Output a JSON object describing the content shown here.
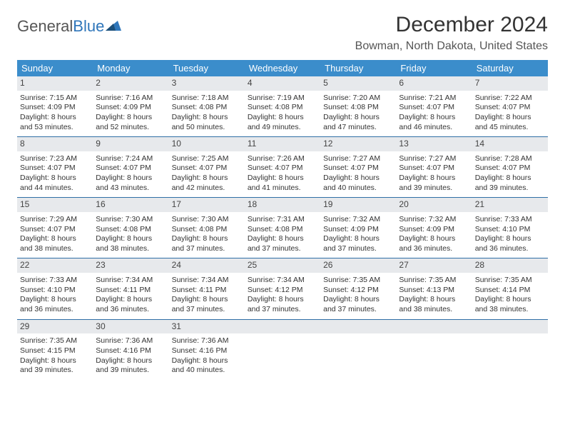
{
  "logo": {
    "general": "General",
    "blue": "Blue"
  },
  "title": "December 2024",
  "location": "Bowman, North Dakota, United States",
  "colors": {
    "header_bg": "#3b8dcb",
    "header_text": "#ffffff",
    "daynum_bg": "#e7e9ec",
    "rule": "#2f6fa6",
    "logo_blue": "#2f76ba"
  },
  "day_headers": [
    "Sunday",
    "Monday",
    "Tuesday",
    "Wednesday",
    "Thursday",
    "Friday",
    "Saturday"
  ],
  "weeks": [
    [
      {
        "day": "1",
        "sunrise": "Sunrise: 7:15 AM",
        "sunset": "Sunset: 4:09 PM",
        "d1": "Daylight: 8 hours",
        "d2": "and 53 minutes."
      },
      {
        "day": "2",
        "sunrise": "Sunrise: 7:16 AM",
        "sunset": "Sunset: 4:09 PM",
        "d1": "Daylight: 8 hours",
        "d2": "and 52 minutes."
      },
      {
        "day": "3",
        "sunrise": "Sunrise: 7:18 AM",
        "sunset": "Sunset: 4:08 PM",
        "d1": "Daylight: 8 hours",
        "d2": "and 50 minutes."
      },
      {
        "day": "4",
        "sunrise": "Sunrise: 7:19 AM",
        "sunset": "Sunset: 4:08 PM",
        "d1": "Daylight: 8 hours",
        "d2": "and 49 minutes."
      },
      {
        "day": "5",
        "sunrise": "Sunrise: 7:20 AM",
        "sunset": "Sunset: 4:08 PM",
        "d1": "Daylight: 8 hours",
        "d2": "and 47 minutes."
      },
      {
        "day": "6",
        "sunrise": "Sunrise: 7:21 AM",
        "sunset": "Sunset: 4:07 PM",
        "d1": "Daylight: 8 hours",
        "d2": "and 46 minutes."
      },
      {
        "day": "7",
        "sunrise": "Sunrise: 7:22 AM",
        "sunset": "Sunset: 4:07 PM",
        "d1": "Daylight: 8 hours",
        "d2": "and 45 minutes."
      }
    ],
    [
      {
        "day": "8",
        "sunrise": "Sunrise: 7:23 AM",
        "sunset": "Sunset: 4:07 PM",
        "d1": "Daylight: 8 hours",
        "d2": "and 44 minutes."
      },
      {
        "day": "9",
        "sunrise": "Sunrise: 7:24 AM",
        "sunset": "Sunset: 4:07 PM",
        "d1": "Daylight: 8 hours",
        "d2": "and 43 minutes."
      },
      {
        "day": "10",
        "sunrise": "Sunrise: 7:25 AM",
        "sunset": "Sunset: 4:07 PM",
        "d1": "Daylight: 8 hours",
        "d2": "and 42 minutes."
      },
      {
        "day": "11",
        "sunrise": "Sunrise: 7:26 AM",
        "sunset": "Sunset: 4:07 PM",
        "d1": "Daylight: 8 hours",
        "d2": "and 41 minutes."
      },
      {
        "day": "12",
        "sunrise": "Sunrise: 7:27 AM",
        "sunset": "Sunset: 4:07 PM",
        "d1": "Daylight: 8 hours",
        "d2": "and 40 minutes."
      },
      {
        "day": "13",
        "sunrise": "Sunrise: 7:27 AM",
        "sunset": "Sunset: 4:07 PM",
        "d1": "Daylight: 8 hours",
        "d2": "and 39 minutes."
      },
      {
        "day": "14",
        "sunrise": "Sunrise: 7:28 AM",
        "sunset": "Sunset: 4:07 PM",
        "d1": "Daylight: 8 hours",
        "d2": "and 39 minutes."
      }
    ],
    [
      {
        "day": "15",
        "sunrise": "Sunrise: 7:29 AM",
        "sunset": "Sunset: 4:07 PM",
        "d1": "Daylight: 8 hours",
        "d2": "and 38 minutes."
      },
      {
        "day": "16",
        "sunrise": "Sunrise: 7:30 AM",
        "sunset": "Sunset: 4:08 PM",
        "d1": "Daylight: 8 hours",
        "d2": "and 38 minutes."
      },
      {
        "day": "17",
        "sunrise": "Sunrise: 7:30 AM",
        "sunset": "Sunset: 4:08 PM",
        "d1": "Daylight: 8 hours",
        "d2": "and 37 minutes."
      },
      {
        "day": "18",
        "sunrise": "Sunrise: 7:31 AM",
        "sunset": "Sunset: 4:08 PM",
        "d1": "Daylight: 8 hours",
        "d2": "and 37 minutes."
      },
      {
        "day": "19",
        "sunrise": "Sunrise: 7:32 AM",
        "sunset": "Sunset: 4:09 PM",
        "d1": "Daylight: 8 hours",
        "d2": "and 37 minutes."
      },
      {
        "day": "20",
        "sunrise": "Sunrise: 7:32 AM",
        "sunset": "Sunset: 4:09 PM",
        "d1": "Daylight: 8 hours",
        "d2": "and 36 minutes."
      },
      {
        "day": "21",
        "sunrise": "Sunrise: 7:33 AM",
        "sunset": "Sunset: 4:10 PM",
        "d1": "Daylight: 8 hours",
        "d2": "and 36 minutes."
      }
    ],
    [
      {
        "day": "22",
        "sunrise": "Sunrise: 7:33 AM",
        "sunset": "Sunset: 4:10 PM",
        "d1": "Daylight: 8 hours",
        "d2": "and 36 minutes."
      },
      {
        "day": "23",
        "sunrise": "Sunrise: 7:34 AM",
        "sunset": "Sunset: 4:11 PM",
        "d1": "Daylight: 8 hours",
        "d2": "and 36 minutes."
      },
      {
        "day": "24",
        "sunrise": "Sunrise: 7:34 AM",
        "sunset": "Sunset: 4:11 PM",
        "d1": "Daylight: 8 hours",
        "d2": "and 37 minutes."
      },
      {
        "day": "25",
        "sunrise": "Sunrise: 7:34 AM",
        "sunset": "Sunset: 4:12 PM",
        "d1": "Daylight: 8 hours",
        "d2": "and 37 minutes."
      },
      {
        "day": "26",
        "sunrise": "Sunrise: 7:35 AM",
        "sunset": "Sunset: 4:12 PM",
        "d1": "Daylight: 8 hours",
        "d2": "and 37 minutes."
      },
      {
        "day": "27",
        "sunrise": "Sunrise: 7:35 AM",
        "sunset": "Sunset: 4:13 PM",
        "d1": "Daylight: 8 hours",
        "d2": "and 38 minutes."
      },
      {
        "day": "28",
        "sunrise": "Sunrise: 7:35 AM",
        "sunset": "Sunset: 4:14 PM",
        "d1": "Daylight: 8 hours",
        "d2": "and 38 minutes."
      }
    ],
    [
      {
        "day": "29",
        "sunrise": "Sunrise: 7:35 AM",
        "sunset": "Sunset: 4:15 PM",
        "d1": "Daylight: 8 hours",
        "d2": "and 39 minutes."
      },
      {
        "day": "30",
        "sunrise": "Sunrise: 7:36 AM",
        "sunset": "Sunset: 4:16 PM",
        "d1": "Daylight: 8 hours",
        "d2": "and 39 minutes."
      },
      {
        "day": "31",
        "sunrise": "Sunrise: 7:36 AM",
        "sunset": "Sunset: 4:16 PM",
        "d1": "Daylight: 8 hours",
        "d2": "and 40 minutes."
      },
      {
        "empty": true
      },
      {
        "empty": true
      },
      {
        "empty": true
      },
      {
        "empty": true
      }
    ]
  ]
}
